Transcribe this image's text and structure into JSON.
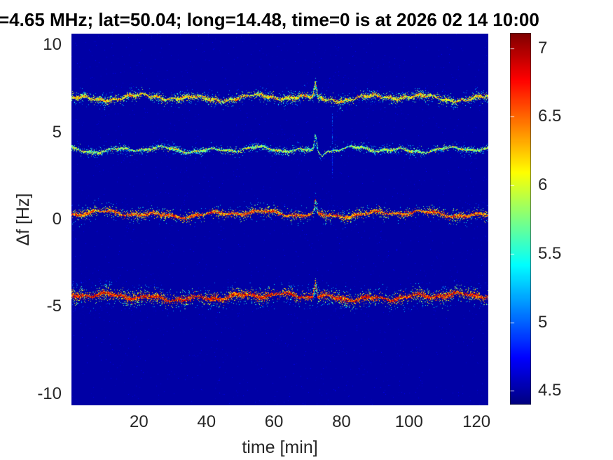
{
  "style": {
    "background": "#ffffff",
    "title_color": "#000000",
    "axis_text_color": "#262626",
    "colormap_low": "#000084",
    "colormap_high": "#800000"
  },
  "chart_data": {
    "type": "heatmap",
    "title": "=4.65 MHz;  lat=50.04; long=14.48, time=0 is at 2026 02 14 10:00",
    "xlabel": "time [min]",
    "ylabel": "Δf [Hz]",
    "xlim": [
      0,
      123.5
    ],
    "ylim": [
      -10.66,
      10.66
    ],
    "xticks": [
      20,
      40,
      60,
      80,
      100,
      120
    ],
    "yticks": [
      10,
      5,
      0,
      -5,
      -10
    ],
    "colormap": "jet",
    "caxis": [
      4.4,
      7.11
    ],
    "colorbar_ticks": [
      7,
      6.5,
      6,
      5.5,
      5,
      4.5
    ],
    "background_value": 4.5,
    "legend_position": "colorbar-right",
    "grid": false,
    "description": "Doppler-shift spectrogram: four noisy horizontal signal traces over deep-blue background, all showing a brief upward frequency excursion near t=72 min and a faint vertical scatter streak near t=77 min.",
    "event_spike_min": 72.3,
    "vertical_streak": {
      "t_min": 77.2,
      "hz_range": [
        2.4,
        6.2
      ]
    },
    "bands": [
      {
        "name": "trace-plus7",
        "center_hz": 7.0,
        "peak_value": 6.25,
        "max_value": 7.0,
        "density": 10,
        "sigmas_hz": [
          0.05,
          0.13,
          0.3
        ],
        "weights": [
          0.45,
          0.35
        ],
        "wobble": [
          [
            0.12,
            17,
            0.5
          ],
          [
            0.05,
            4.3,
            2.1
          ],
          [
            0.08,
            37,
            4.0
          ]
        ],
        "wide_left": false,
        "spike_amp_hz": 0.72
      },
      {
        "name": "trace-plus4",
        "center_hz": 4.02,
        "peak_value": 5.95,
        "max_value": 6.55,
        "density": 6.5,
        "sigmas_hz": [
          0.045,
          0.11,
          0.24
        ],
        "weights": [
          0.45,
          0.35
        ],
        "wobble": [
          [
            0.1,
            14,
            1.8
          ],
          [
            0.04,
            5.1,
            0.7
          ],
          [
            0.07,
            31,
            3.1
          ]
        ],
        "wide_left": false,
        "spike_amp_hz": 0.85,
        "post_dip": true,
        "fade": [
          73.5,
          83,
          0.35
        ]
      },
      {
        "name": "trace-zero",
        "center_hz": 0.33,
        "peak_value": 6.6,
        "max_value": 6.95,
        "density": 9,
        "sigmas_hz": [
          0.05,
          0.12,
          0.28
        ],
        "weights": [
          0.42,
          0.35
        ],
        "wobble": [
          [
            0.1,
            16,
            4.2
          ],
          [
            0.05,
            6.0,
            1.2
          ],
          [
            0.1,
            45,
            0.3
          ]
        ],
        "wide_left": true,
        "spike_amp_hz": 0.78
      },
      {
        "name": "trace-minus4p4",
        "center_hz": -4.42,
        "peak_value": 6.8,
        "max_value": 7.05,
        "density": 13,
        "sigmas_hz": [
          0.06,
          0.16,
          0.42
        ],
        "weights": [
          0.4,
          0.35
        ],
        "wobble": [
          [
            0.1,
            13,
            2.6
          ],
          [
            0.05,
            5.5,
            3.3
          ],
          [
            0.12,
            55,
            1.0
          ]
        ],
        "wide_left": true,
        "spike_amp_hz": 0.8
      }
    ]
  }
}
